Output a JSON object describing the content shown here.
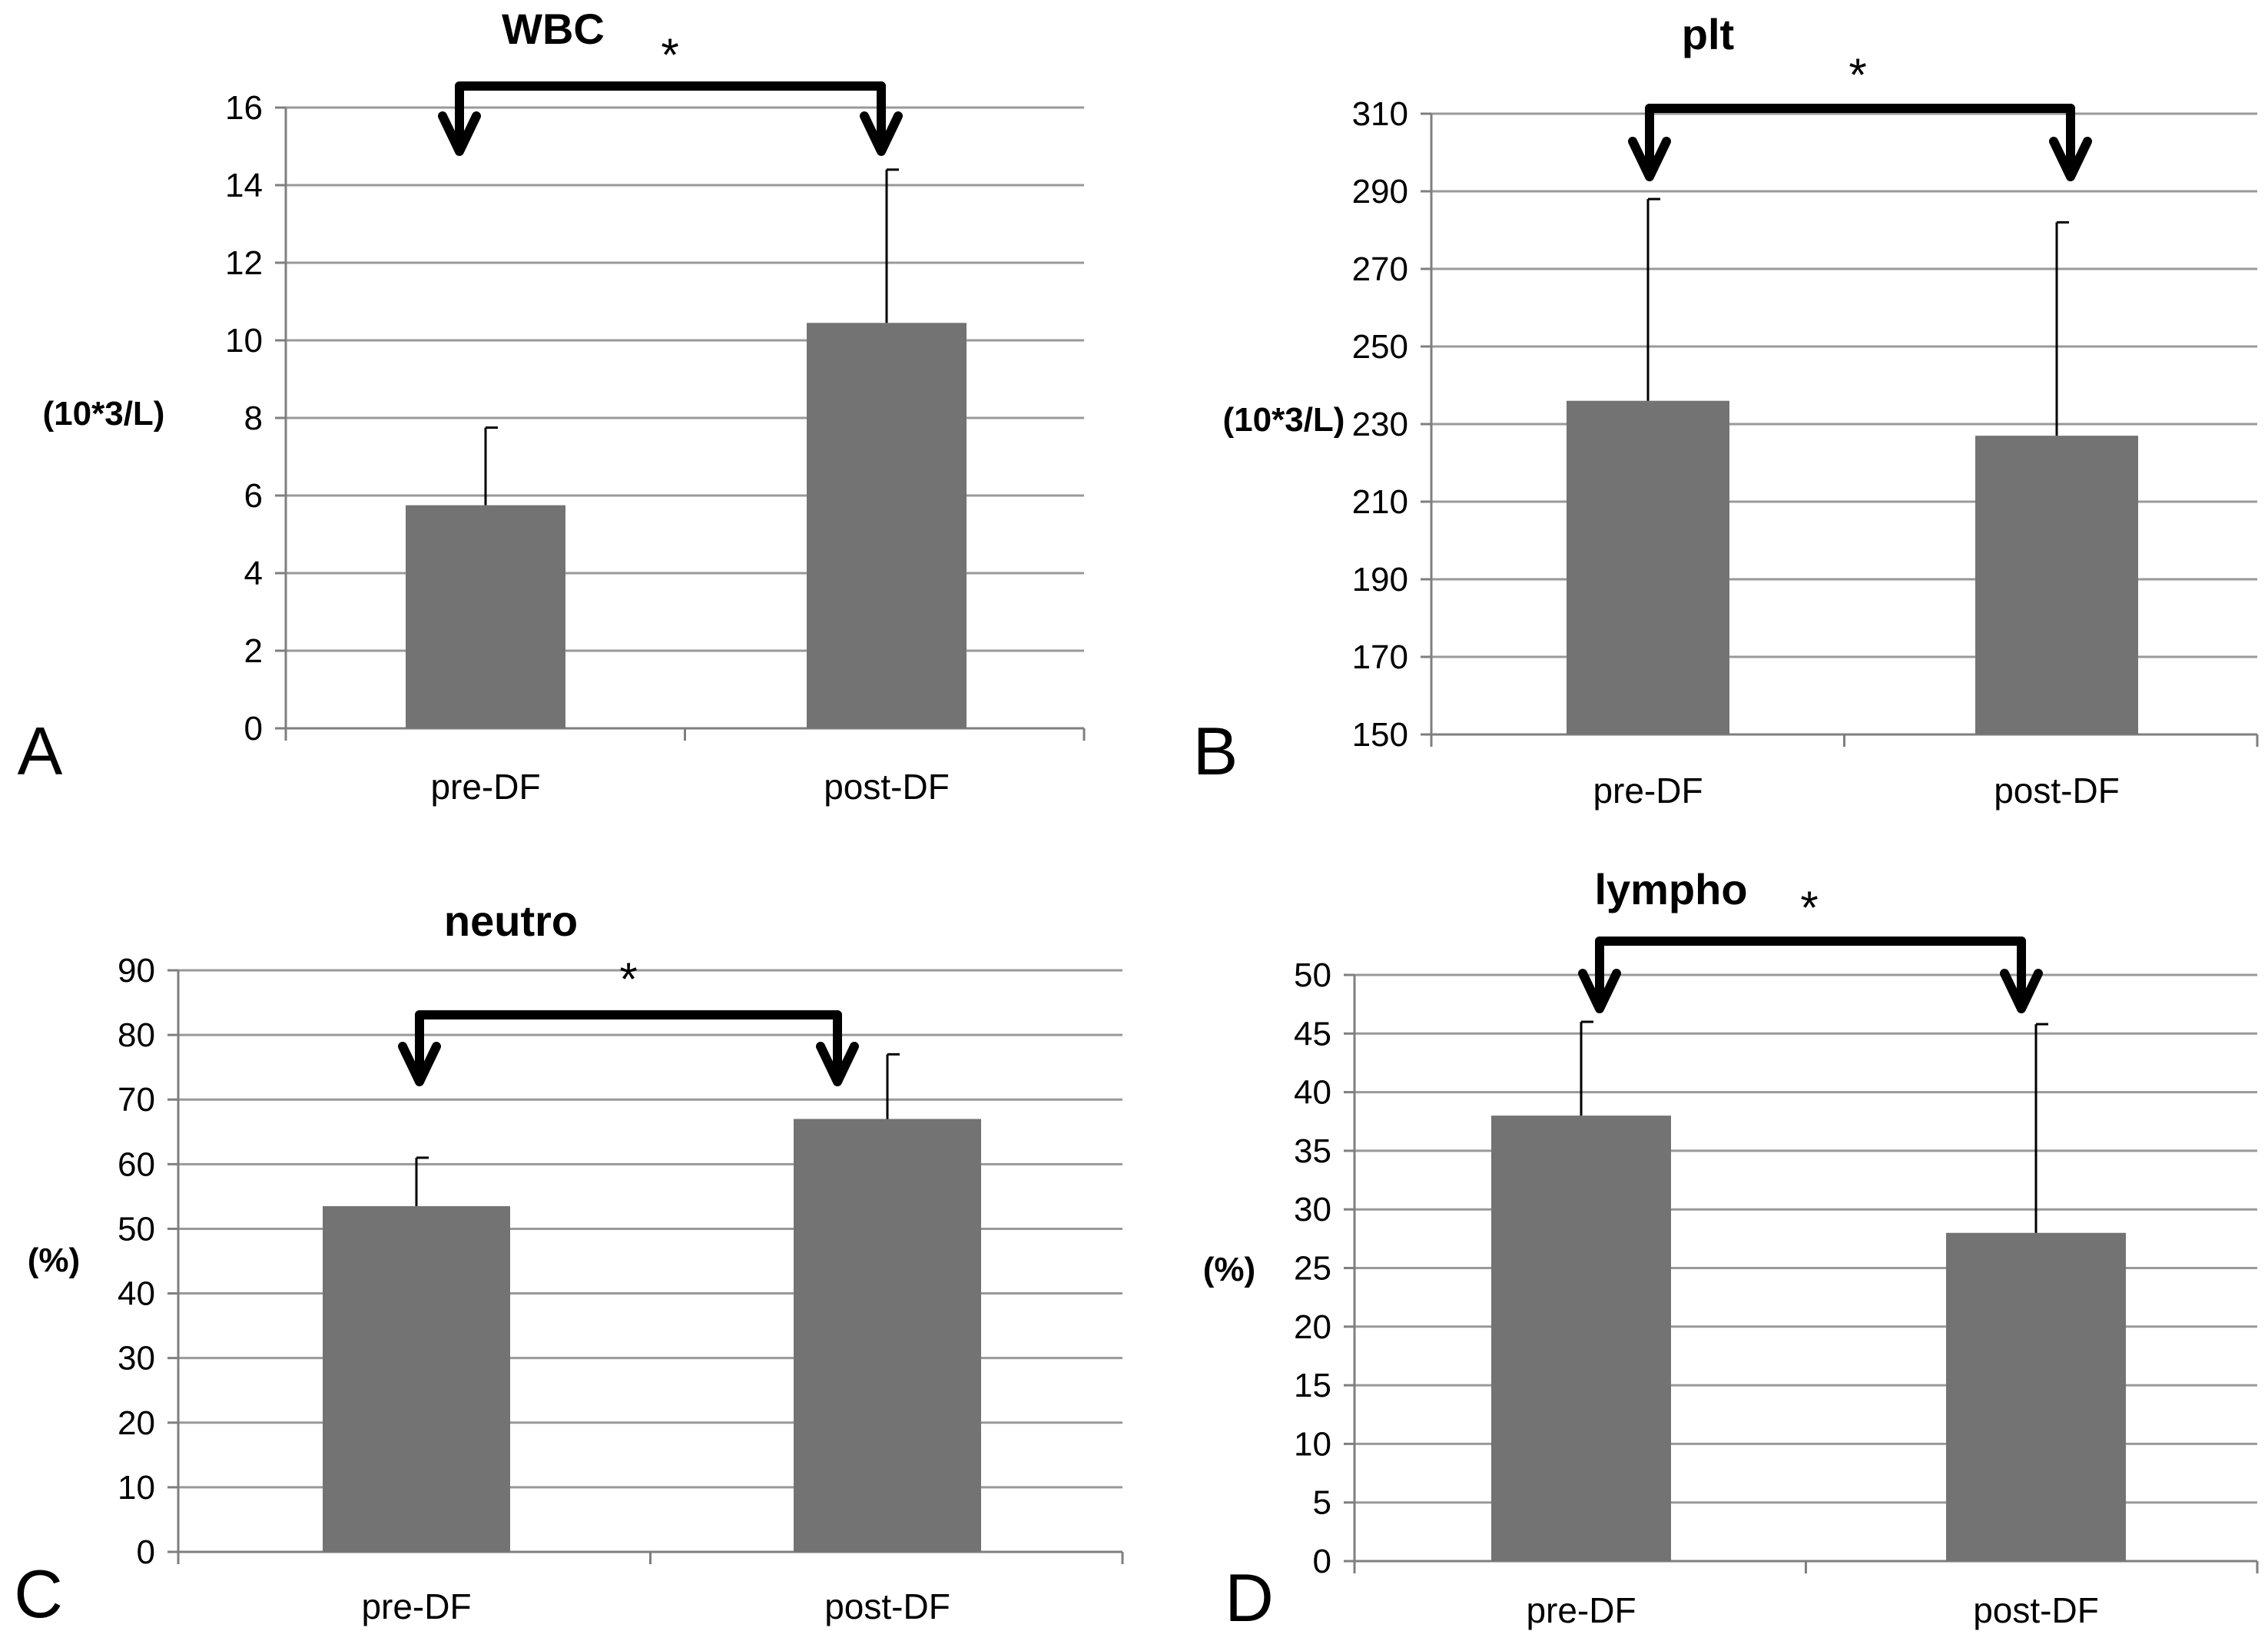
{
  "colors": {
    "bar": "#737373",
    "grid": "#999999",
    "axis": "#7f7f7f",
    "error": "#000000",
    "bracket": "#000000"
  },
  "chart_data": [
    {
      "type": "bar",
      "panel_label": "A",
      "title": "WBC",
      "ylabel": "(10*3/L)",
      "categories": [
        "pre-DF",
        "post-DF"
      ],
      "values": [
        5.75,
        10.45
      ],
      "error_plus": [
        2.0,
        3.95
      ],
      "ylim": [
        0,
        16
      ],
      "y_ticks": [
        "0",
        "2",
        "4",
        "6",
        "8",
        "10",
        "12",
        "14",
        "16"
      ],
      "significance": "*",
      "grid": true
    },
    {
      "type": "bar",
      "panel_label": "B",
      "title": "plt",
      "ylabel": "(10*3/L)",
      "categories": [
        "pre-DF",
        "post-DF"
      ],
      "values": [
        236,
        227
      ],
      "error_plus": [
        52,
        55
      ],
      "ylim": [
        150,
        310
      ],
      "y_ticks": [
        "150",
        "170",
        "190",
        "210",
        "230",
        "250",
        "270",
        "290",
        "310"
      ],
      "significance": "*",
      "grid": true
    },
    {
      "type": "bar",
      "panel_label": "C",
      "title": "neutro",
      "ylabel": "(%)",
      "categories": [
        "pre-DF",
        "post-DF"
      ],
      "values": [
        53.5,
        67
      ],
      "error_plus": [
        7.5,
        10
      ],
      "ylim": [
        0,
        90
      ],
      "y_ticks": [
        "0",
        "10",
        "20",
        "30",
        "40",
        "50",
        "60",
        "70",
        "80",
        "90"
      ],
      "significance": "*",
      "grid": true
    },
    {
      "type": "bar",
      "panel_label": "D",
      "title": "lympho",
      "ylabel": "(%)",
      "categories": [
        "pre-DF",
        "post-DF"
      ],
      "values": [
        38,
        28
      ],
      "error_plus": [
        8,
        17.8
      ],
      "ylim": [
        0,
        50
      ],
      "y_ticks": [
        "0",
        "5",
        "10",
        "15",
        "20",
        "25",
        "30",
        "35",
        "40",
        "45",
        "50"
      ],
      "significance": "*",
      "grid": true
    }
  ]
}
